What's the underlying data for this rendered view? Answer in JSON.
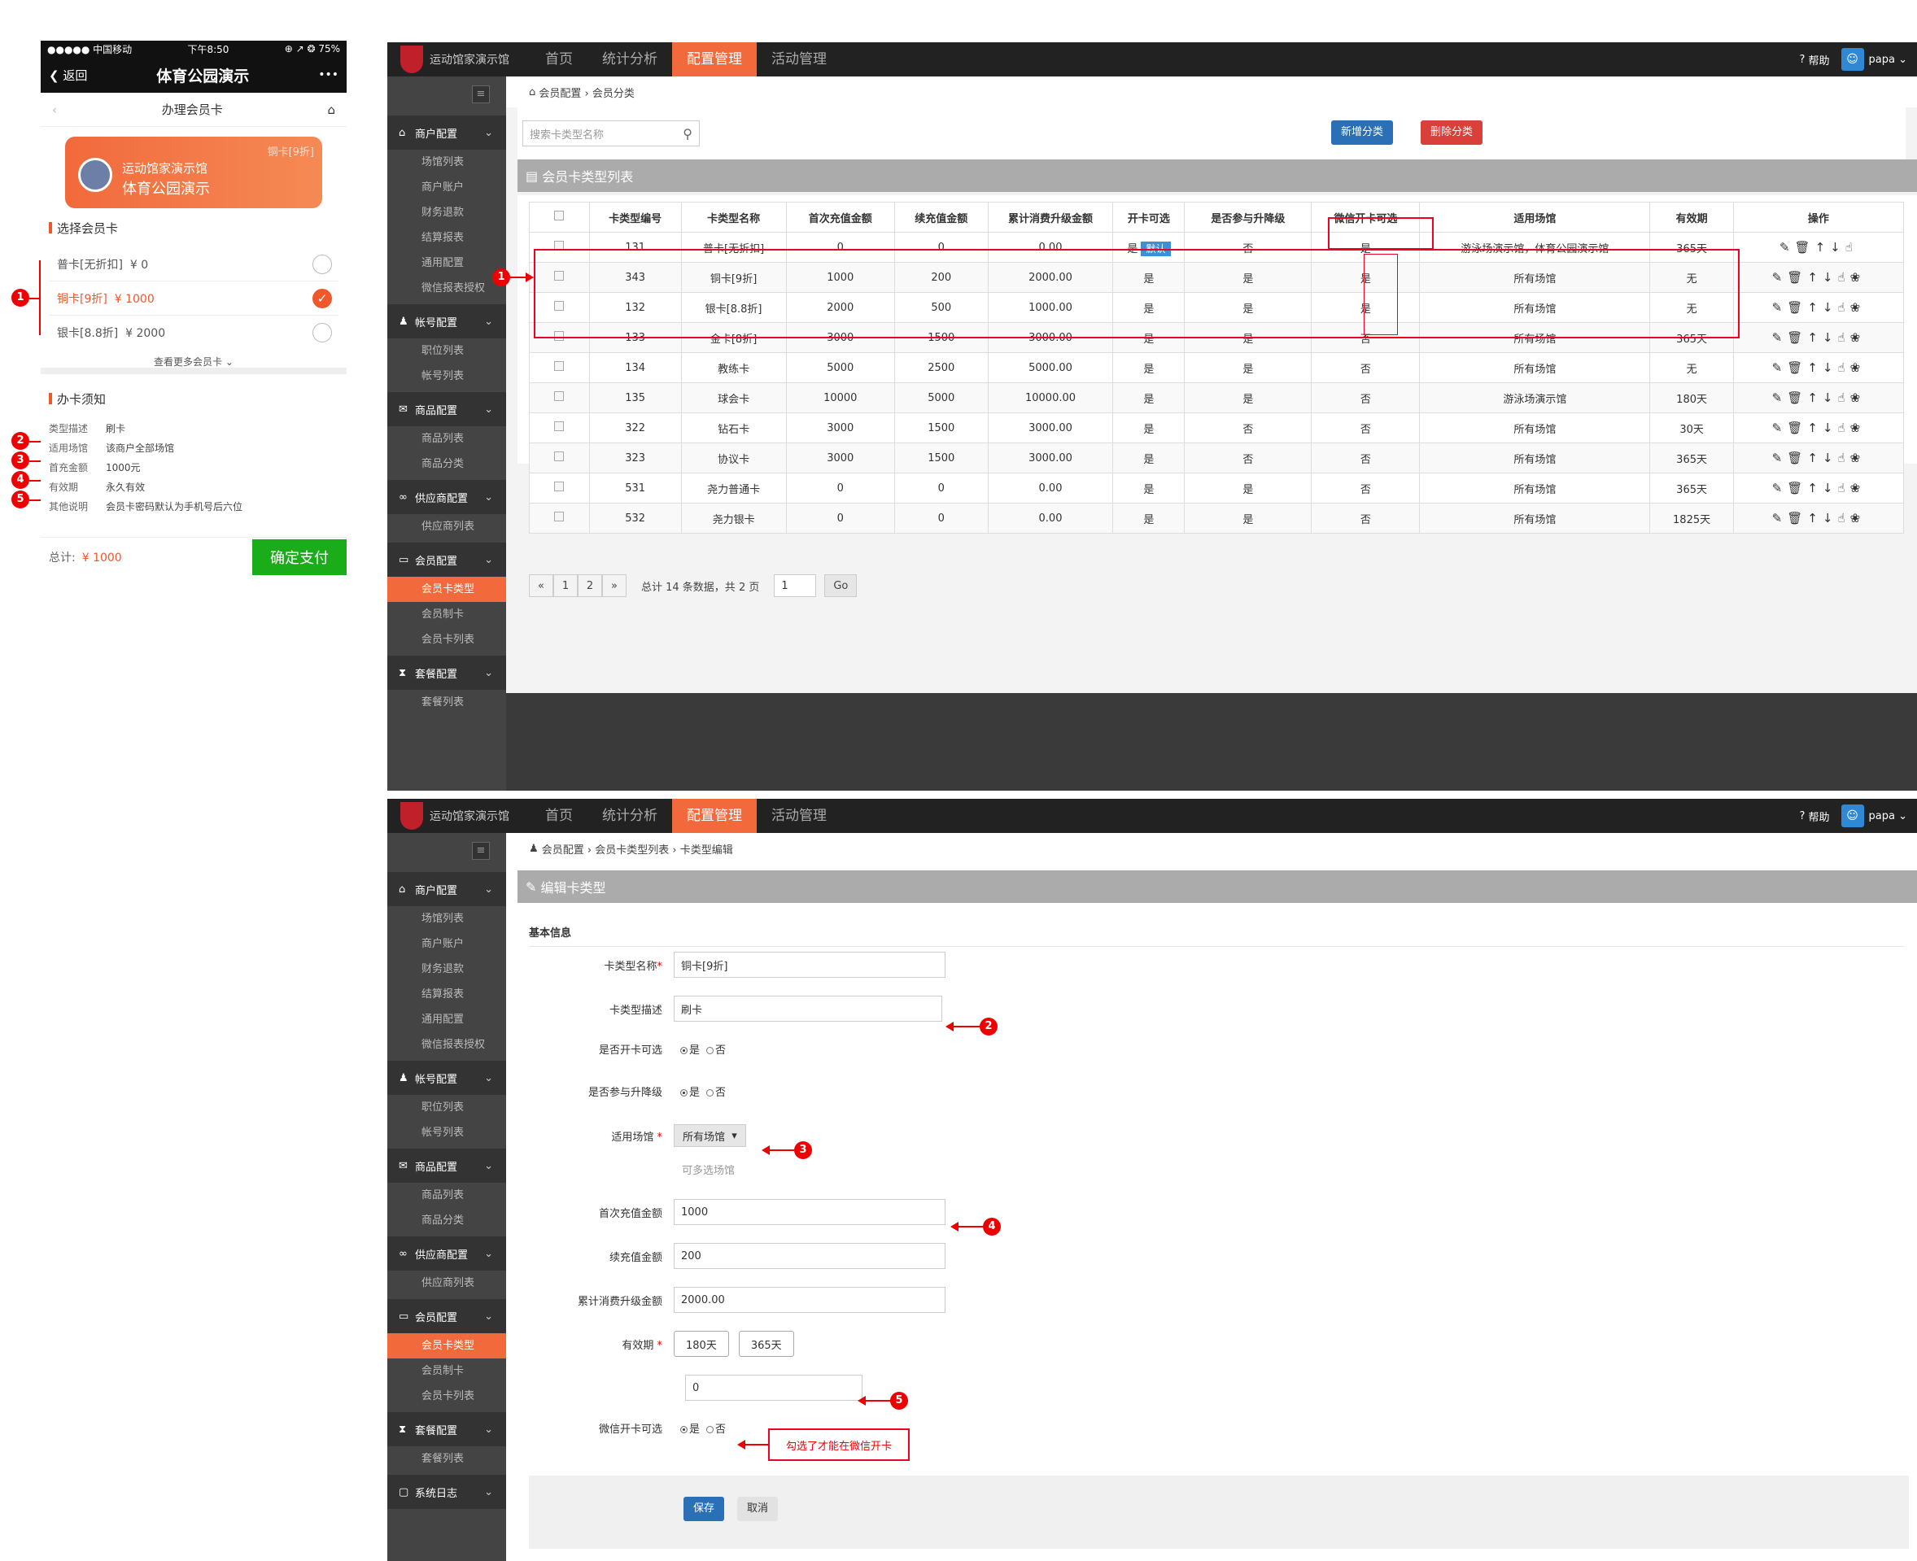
{
  "phone": {
    "status": {
      "carrier": "●●●●● 中国移动",
      "time": "下午8:50",
      "battery": "⊕ ↗ ❂ 75%"
    },
    "nav": {
      "back": "返回",
      "title": "体育公园演示",
      "more": "•••"
    },
    "sub_title": "办理会员卡",
    "card": {
      "tag": "铜卡[9折]",
      "line1": "运动馆家演示馆",
      "line2": "体育公园演示"
    },
    "select_title": "选择会员卡",
    "options": [
      {
        "name": "普卡[无折扣]",
        "price": "¥ 0"
      },
      {
        "name": "铜卡[9折]",
        "price": "¥ 1000"
      },
      {
        "name": "银卡[8.8折]",
        "price": "¥ 2000"
      }
    ],
    "more": "查看更多会员卡",
    "notice_title": "办卡须知",
    "notice": [
      {
        "k": "类型描述",
        "v": "刷卡"
      },
      {
        "k": "适用场馆",
        "v": "该商户全部场馆"
      },
      {
        "k": "首充金额",
        "v": "1000元"
      },
      {
        "k": "有效期",
        "v": "永久有效"
      },
      {
        "k": "其他说明",
        "v": "会员卡密码默认为手机号后六位"
      }
    ],
    "total_label": "总计:",
    "total": "¥ 1000",
    "pay": "确定支付"
  },
  "admin": {
    "brand": "运动馆家演示馆",
    "nav": [
      "首页",
      "统计分析",
      "配置管理",
      "活动管理"
    ],
    "help": "帮助",
    "user": "papa",
    "sidebar": [
      {
        "title": "商户配置",
        "icon": "home-icon",
        "items": [
          "场馆列表",
          "商户账户",
          "财务退款",
          "结算报表",
          "通用配置",
          "微信报表授权"
        ]
      },
      {
        "title": "帐号配置",
        "icon": "user-icon",
        "items": [
          "职位列表",
          "帐号列表"
        ]
      },
      {
        "title": "商品配置",
        "icon": "gift-icon",
        "items": [
          "商品列表",
          "商品分类"
        ]
      },
      {
        "title": "供应商配置",
        "icon": "link-icon",
        "items": [
          "供应商列表"
        ]
      },
      {
        "title": "会员配置",
        "icon": "card-icon",
        "items": [
          "会员卡类型",
          "会员制卡",
          "会员卡列表"
        ]
      },
      {
        "title": "套餐配置",
        "icon": "hourglass-icon",
        "items": [
          "套餐列表"
        ]
      },
      {
        "title": "系统日志",
        "icon": "log-icon",
        "items": []
      }
    ]
  },
  "list": {
    "breadcrumb": "会员配置 › 会员分类",
    "search_placeholder": "搜索卡类型名称",
    "add": "新增分类",
    "del": "删除分类",
    "panel_title": "会员卡类型列表",
    "columns": [
      "卡类型编号",
      "卡类型名称",
      "首次充值金额",
      "续充值金额",
      "累计消费升级金额",
      "开卡可选",
      "是否参与升降级",
      "微信开卡可选",
      "适用场馆",
      "有效期",
      "操作"
    ],
    "default_badge": "默认",
    "rows": [
      [
        "131",
        "普卡[无折扣]",
        "0",
        "0",
        "0.00",
        "是",
        "否",
        "是",
        "游泳场演示馆，体育公园演示馆",
        "365天"
      ],
      [
        "343",
        "铜卡[9折]",
        "1000",
        "200",
        "2000.00",
        "是",
        "是",
        "是",
        "所有场馆",
        "无"
      ],
      [
        "132",
        "银卡[8.8折]",
        "2000",
        "500",
        "1000.00",
        "是",
        "是",
        "是",
        "所有场馆",
        "无"
      ],
      [
        "133",
        "金卡[8折]",
        "3000",
        "1500",
        "3000.00",
        "是",
        "是",
        "否",
        "所有场馆",
        "365天"
      ],
      [
        "134",
        "教练卡",
        "5000",
        "2500",
        "5000.00",
        "是",
        "是",
        "否",
        "所有场馆",
        "无"
      ],
      [
        "135",
        "球会卡",
        "10000",
        "5000",
        "10000.00",
        "是",
        "是",
        "否",
        "游泳场演示馆",
        "180天"
      ],
      [
        "322",
        "钻石卡",
        "3000",
        "1500",
        "3000.00",
        "是",
        "否",
        "否",
        "所有场馆",
        "30天"
      ],
      [
        "323",
        "协议卡",
        "3000",
        "1500",
        "3000.00",
        "是",
        "否",
        "否",
        "所有场馆",
        "365天"
      ],
      [
        "531",
        "尧力普通卡",
        "0",
        "0",
        "0.00",
        "是",
        "是",
        "否",
        "所有场馆",
        "365天"
      ],
      [
        "532",
        "尧力银卡",
        "0",
        "0",
        "0.00",
        "是",
        "是",
        "否",
        "所有场馆",
        "1825天"
      ]
    ],
    "pager": {
      "prev": "«",
      "p1": "1",
      "p2": "2",
      "next": "»",
      "summary": "总计 14 条数据，共 2 页",
      "goto": "1",
      "go": "Go"
    }
  },
  "form": {
    "breadcrumb": "会员配置 › 会员卡类型列表 › 卡类型编辑",
    "panel_title": "编辑卡类型",
    "section": "基本信息",
    "name_label": "卡类型名称",
    "name": "铜卡[9折]",
    "desc_label": "卡类型描述",
    "desc": "刷卡",
    "open_label": "是否开卡可选",
    "upgrade_label": "是否参与升降级",
    "yes": "是",
    "no": "否",
    "venue_label": "适用场馆",
    "venue": "所有场馆",
    "venue_hint": "可多选场馆",
    "first_label": "首次充值金额",
    "first": "1000",
    "renew_label": "续充值金额",
    "renew": "200",
    "acc_label": "累计消费升级金额",
    "acc": "2000.00",
    "valid_label": "有效期",
    "valid_opts": [
      "180天",
      "365天"
    ],
    "valid": "0",
    "wx_label": "微信开卡可选",
    "wx_note": "勾选了才能在微信开卡",
    "save": "保存",
    "cancel": "取消"
  },
  "markers": [
    "1",
    "2",
    "3",
    "4",
    "5"
  ]
}
